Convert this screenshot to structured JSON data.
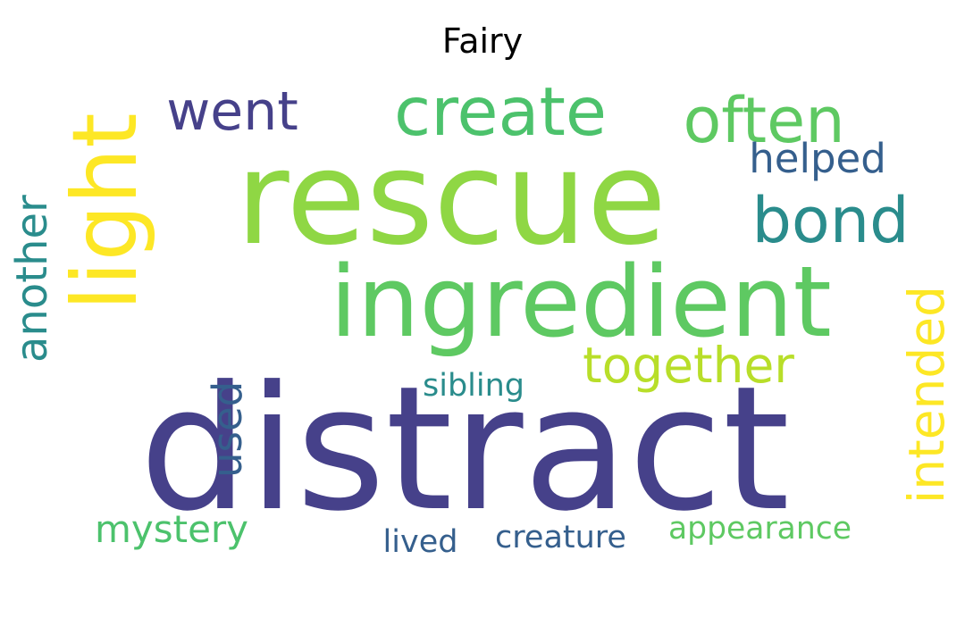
{
  "title": "Fairy",
  "palette": {
    "dark_purple": "#46418a",
    "teal": "#2a8c8c",
    "steel_blue": "#355f8d",
    "green": "#4cc26c",
    "lime": "#8fd744",
    "yellow_green": "#b8de29",
    "yellow": "#fde725"
  },
  "words": [
    {
      "text": "distract",
      "color": "#46418a",
      "orientation": "horizontal"
    },
    {
      "text": "rescue",
      "color": "#8fd744",
      "orientation": "horizontal"
    },
    {
      "text": "ingredient",
      "color": "#5ec962",
      "orientation": "horizontal"
    },
    {
      "text": "create",
      "color": "#4cc26c",
      "orientation": "horizontal"
    },
    {
      "text": "often",
      "color": "#5ec962",
      "orientation": "horizontal"
    },
    {
      "text": "went",
      "color": "#46418a",
      "orientation": "horizontal"
    },
    {
      "text": "light",
      "color": "#fde725",
      "orientation": "vertical"
    },
    {
      "text": "bond",
      "color": "#2a8c8c",
      "orientation": "horizontal"
    },
    {
      "text": "another",
      "color": "#2a8c8c",
      "orientation": "vertical"
    },
    {
      "text": "together",
      "color": "#b8de29",
      "orientation": "horizontal"
    },
    {
      "text": "intended",
      "color": "#fde725",
      "orientation": "vertical"
    },
    {
      "text": "used",
      "color": "#355f8d",
      "orientation": "vertical"
    },
    {
      "text": "helped",
      "color": "#355f8d",
      "orientation": "horizontal"
    },
    {
      "text": "mystery",
      "color": "#4cc26c",
      "orientation": "horizontal"
    },
    {
      "text": "sibling",
      "color": "#2a8c8c",
      "orientation": "horizontal"
    },
    {
      "text": "appearance",
      "color": "#5ec962",
      "orientation": "horizontal"
    },
    {
      "text": "creature",
      "color": "#355f8d",
      "orientation": "horizontal"
    },
    {
      "text": "lived",
      "color": "#355f8d",
      "orientation": "horizontal"
    }
  ]
}
